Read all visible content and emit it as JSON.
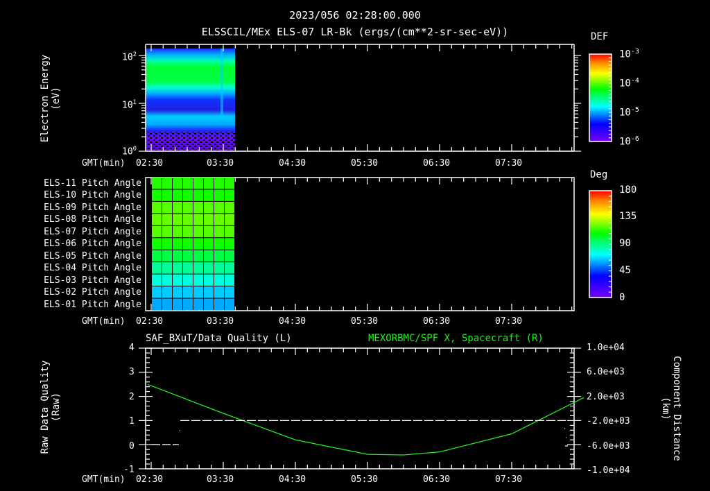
{
  "header": {
    "timestamp": "2023/056 02:28:00.000",
    "subtitle": "ELSSCIL/MEx ELS-07 LR-Bk  (ergs/(cm**2-sr-sec-eV))"
  },
  "time_axis": {
    "label": "GMT(min)",
    "ticks": [
      "02:30",
      "03:30",
      "04:30",
      "05:30",
      "06:30",
      "07:30"
    ]
  },
  "panel1": {
    "ylabel_line1": "Electron Energy",
    "ylabel_line2": "(eV)",
    "yticks": [
      "10",
      "10",
      "10"
    ],
    "yexp": [
      "2",
      "1",
      "0"
    ],
    "colorbar": {
      "title": "DEF",
      "labels": [
        "10",
        "10",
        "10",
        "10"
      ],
      "exps": [
        "-3",
        "-4",
        "-5",
        "-6"
      ]
    }
  },
  "panel2": {
    "rows": [
      "ELS-11 Pitch Angle",
      "ELS-10 Pitch Angle",
      "ELS-09 Pitch Angle",
      "ELS-08 Pitch Angle",
      "ELS-07 Pitch Angle",
      "ELS-06 Pitch Angle",
      "ELS-05 Pitch Angle",
      "ELS-04 Pitch Angle",
      "ELS-03 Pitch Angle",
      "ELS-02 Pitch Angle",
      "ELS-01 Pitch Angle"
    ],
    "row_colors": [
      "#22ff00",
      "#11ff00",
      "#55ff00",
      "#66ff00",
      "#55ff00",
      "#11ff00",
      "#00ff44",
      "#00ff99",
      "#00ffdd",
      "#00ccff",
      "#00aaff"
    ],
    "colorbar": {
      "title": "Deg",
      "labels": [
        "180",
        "135",
        "90",
        "45",
        "0"
      ]
    }
  },
  "panel3": {
    "left_title": "SAF_BXuT/Data Quality (L)",
    "right_title": "MEXORBMC/SPF X, Spacecraft (R)",
    "right_title_color": "#22ee22",
    "ylabel_left_line1": "Raw Data Quality",
    "ylabel_left_line2": "(Raw)",
    "yticks_left": [
      "4",
      "3",
      "2",
      "1",
      "0",
      "-1"
    ],
    "ylabel_right_line1": "Component Distance",
    "ylabel_right_line2": "(km)",
    "yticks_right": [
      "1.0e+04",
      "6.0e+03",
      "2.0e+03",
      "-2.0e+03",
      "-6.0e+03",
      "-1.0e+04"
    ]
  },
  "chart_data": [
    {
      "type": "heatmap",
      "title": "ELSSCIL/MEx ELS-07 LR-Bk (ergs/(cm**2-sr-sec-eV))",
      "xlabel": "GMT(min)",
      "ylabel": "Electron Energy (eV)",
      "x_ticks": [
        "02:30",
        "03:30",
        "04:30",
        "05:30",
        "06:30",
        "07:30"
      ],
      "y_scale": "log",
      "ylim": [
        1,
        150
      ],
      "data_time_range": [
        "02:27",
        "03:43"
      ],
      "colorbar": {
        "label": "DEF",
        "scale": "log",
        "range": [
          1e-06,
          0.001
        ]
      },
      "bands": [
        {
          "energy_range_eV": [
            1,
            3
          ],
          "level": "~1e-6 (violet, sparse)"
        },
        {
          "energy_range_eV": [
            3,
            8
          ],
          "level": "~1e-5 (cyan/blue)"
        },
        {
          "energy_range_eV": [
            8,
            17
          ],
          "level": "~3e-6 (blue)"
        },
        {
          "energy_range_eV": [
            17,
            70
          ],
          "level": "~1e-4 (green)"
        },
        {
          "energy_range_eV": [
            70,
            150
          ],
          "level": "~1e-5 (cyan/blue)"
        }
      ]
    },
    {
      "type": "heatmap",
      "title": "Pitch Angle",
      "xlabel": "GMT(min)",
      "categories": [
        "ELS-11",
        "ELS-10",
        "ELS-09",
        "ELS-08",
        "ELS-07",
        "ELS-06",
        "ELS-05",
        "ELS-04",
        "ELS-03",
        "ELS-02",
        "ELS-01"
      ],
      "values_deg": [
        112,
        110,
        120,
        123,
        120,
        110,
        100,
        85,
        70,
        55,
        48
      ],
      "colorbar": {
        "label": "Deg",
        "range": [
          0,
          180
        ],
        "ticks": [
          0,
          45,
          90,
          135,
          180
        ]
      },
      "data_time_range": [
        "02:35",
        "03:43"
      ]
    },
    {
      "type": "line",
      "title": "SAF_BXuT/Data Quality (L) ; MEXORBMC/SPF X, Spacecraft (R)",
      "xlabel": "GMT(min)",
      "x_ticks": [
        "02:30",
        "03:30",
        "04:30",
        "05:30",
        "06:30",
        "07:30"
      ],
      "series": [
        {
          "name": "Data Quality (L)",
          "axis": "left",
          "points": [
            [
              "02:40",
              0
            ],
            [
              "02:50",
              0
            ],
            [
              "03:00",
              0
            ],
            [
              "03:02",
              1
            ],
            [
              "04:30",
              1
            ],
            [
              "06:00",
              1
            ],
            [
              "08:00",
              1
            ],
            [
              "08:18",
              1
            ]
          ]
        },
        {
          "name": "SPF X Spacecraft (R)",
          "axis": "right",
          "color": "#22ee22",
          "points": [
            [
              "02:27",
              4000
            ],
            [
              "03:30",
              -800
            ],
            [
              "04:30",
              -5200
            ],
            [
              "05:30",
              -7600
            ],
            [
              "06:00",
              -7700
            ],
            [
              "06:30",
              -7200
            ],
            [
              "07:30",
              -4200
            ],
            [
              "08:30",
              1800
            ]
          ]
        }
      ],
      "ylim_left": [
        -1,
        4
      ],
      "ylim_right": [
        -10000,
        10000
      ],
      "ylabel_left": "Raw Data Quality (Raw)",
      "ylabel_right": "Component Distance (km)"
    }
  ]
}
